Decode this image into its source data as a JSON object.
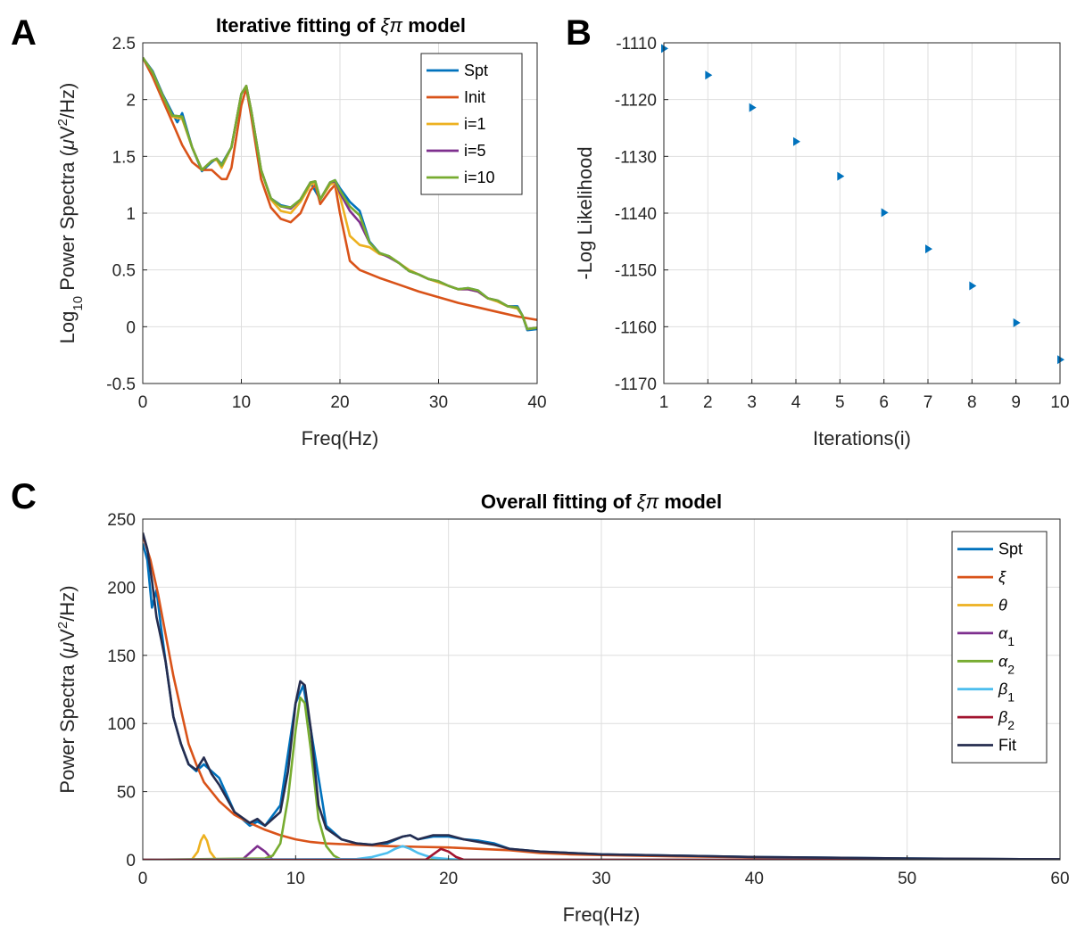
{
  "panels": {
    "A": {
      "letter": "A",
      "title_prefix": "Iterative fitting of",
      "title_symbol": "ξπ",
      "title_suffix": "model"
    },
    "B": {
      "letter": "B"
    },
    "C": {
      "letter": "C",
      "title_prefix": "Overall fitting of",
      "title_symbol": "ξπ",
      "title_suffix": "model"
    }
  },
  "chart_data": [
    {
      "id": "A",
      "type": "line",
      "xlabel": "Freq(Hz)",
      "ylabel": {
        "prefix": "Log",
        "sub": "10",
        "mid": " Power Spectra (",
        "mu": "μ",
        "unit": "V",
        "sup": "2",
        "end": "/Hz)"
      },
      "xlim": [
        0,
        40
      ],
      "ylim": [
        -0.5,
        2.5
      ],
      "xticks": [
        "0",
        "10",
        "20",
        "30",
        "40"
      ],
      "yticks": [
        "-0.5",
        "0",
        "0.5",
        "1",
        "1.5",
        "2",
        "2.5"
      ],
      "grid": true,
      "legend_position": "top-right",
      "series": [
        {
          "name": "Spt",
          "color": "#0072BD",
          "x": [
            0,
            1,
            2,
            3,
            3.5,
            4,
            5,
            6,
            7,
            7.5,
            8,
            9,
            10,
            10.5,
            11,
            12,
            13,
            14,
            15,
            16,
            17,
            18,
            19,
            19.5,
            20,
            21,
            22,
            23,
            24,
            25,
            26,
            27,
            28,
            29,
            30,
            31,
            32,
            33,
            34,
            35,
            36,
            37,
            38,
            38.5,
            39,
            40
          ],
          "y": [
            2.37,
            2.25,
            2.05,
            1.88,
            1.8,
            1.88,
            1.58,
            1.37,
            1.45,
            1.48,
            1.43,
            1.58,
            2.05,
            2.12,
            1.9,
            1.38,
            1.13,
            1.07,
            1.05,
            1.12,
            1.27,
            1.12,
            1.27,
            1.29,
            1.22,
            1.1,
            1.02,
            0.75,
            0.65,
            0.62,
            0.56,
            0.49,
            0.46,
            0.42,
            0.4,
            0.36,
            0.33,
            0.34,
            0.32,
            0.25,
            0.23,
            0.18,
            0.18,
            0.1,
            -0.03,
            -0.02
          ]
        },
        {
          "name": "Init",
          "color": "#D95319",
          "x": [
            0,
            1,
            2,
            3,
            4,
            5,
            6,
            7,
            8,
            8.5,
            9,
            10,
            10.5,
            11,
            12,
            13,
            14,
            15,
            16,
            17,
            17.5,
            18,
            19,
            19.5,
            20,
            21,
            22,
            24,
            26,
            28,
            30,
            32,
            34,
            36,
            38,
            40
          ],
          "y": [
            2.37,
            2.2,
            2.0,
            1.8,
            1.6,
            1.45,
            1.38,
            1.38,
            1.3,
            1.3,
            1.4,
            1.95,
            2.1,
            1.85,
            1.3,
            1.05,
            0.95,
            0.92,
            1.0,
            1.2,
            1.25,
            1.08,
            1.2,
            1.25,
            1.0,
            0.58,
            0.5,
            0.43,
            0.37,
            0.31,
            0.26,
            0.21,
            0.17,
            0.13,
            0.09,
            0.06
          ]
        },
        {
          "name": "i=1",
          "color": "#EDB120",
          "x": [
            0,
            1,
            2,
            3,
            4,
            5,
            6,
            7,
            7.5,
            8,
            9,
            10,
            10.5,
            11,
            12,
            13,
            14,
            15,
            16,
            17,
            17.5,
            18,
            19,
            19.5,
            20,
            21,
            22,
            23,
            24,
            25,
            26,
            27,
            28,
            29,
            30,
            31,
            32,
            33,
            34,
            35,
            36,
            37,
            38,
            38.5,
            39,
            40
          ],
          "y": [
            2.37,
            2.24,
            2.04,
            1.85,
            1.83,
            1.58,
            1.38,
            1.46,
            1.47,
            1.4,
            1.58,
            2.05,
            2.12,
            1.9,
            1.38,
            1.12,
            1.02,
            1.0,
            1.1,
            1.25,
            1.27,
            1.12,
            1.25,
            1.27,
            1.15,
            0.8,
            0.72,
            0.7,
            0.64,
            0.62,
            0.56,
            0.5,
            0.46,
            0.42,
            0.39,
            0.36,
            0.33,
            0.33,
            0.31,
            0.25,
            0.22,
            0.18,
            0.16,
            0.1,
            -0.02,
            -0.01
          ]
        },
        {
          "name": "i=5",
          "color": "#7E2F8E",
          "x": [
            0,
            1,
            2,
            3,
            4,
            5,
            6,
            7,
            7.5,
            8,
            9,
            10,
            10.5,
            11,
            12,
            13,
            14,
            15,
            16,
            17,
            17.5,
            18,
            19,
            19.5,
            20,
            21,
            22,
            23,
            24,
            25,
            26,
            27,
            28,
            29,
            30,
            31,
            32,
            33,
            34,
            35,
            36,
            37,
            38,
            38.5,
            39,
            40
          ],
          "y": [
            2.37,
            2.24,
            2.04,
            1.86,
            1.85,
            1.58,
            1.38,
            1.46,
            1.48,
            1.42,
            1.58,
            2.05,
            2.12,
            1.9,
            1.38,
            1.13,
            1.06,
            1.04,
            1.12,
            1.27,
            1.28,
            1.12,
            1.27,
            1.28,
            1.18,
            1.02,
            0.92,
            0.74,
            0.65,
            0.61,
            0.56,
            0.49,
            0.46,
            0.42,
            0.4,
            0.36,
            0.33,
            0.33,
            0.31,
            0.25,
            0.23,
            0.18,
            0.17,
            0.1,
            -0.02,
            -0.01
          ]
        },
        {
          "name": "i=10",
          "color": "#77AC30",
          "x": [
            0,
            1,
            2,
            3,
            4,
            5,
            6,
            7,
            7.5,
            8,
            9,
            10,
            10.5,
            11,
            12,
            13,
            14,
            15,
            16,
            17,
            17.5,
            18,
            19,
            19.5,
            20,
            21,
            22,
            23,
            24,
            25,
            26,
            27,
            28,
            29,
            30,
            31,
            32,
            33,
            34,
            35,
            36,
            37,
            38,
            38.5,
            39,
            40
          ],
          "y": [
            2.37,
            2.24,
            2.04,
            1.86,
            1.85,
            1.58,
            1.38,
            1.46,
            1.48,
            1.42,
            1.58,
            2.05,
            2.12,
            1.9,
            1.38,
            1.13,
            1.06,
            1.05,
            1.12,
            1.27,
            1.28,
            1.12,
            1.27,
            1.29,
            1.2,
            1.06,
            0.98,
            0.74,
            0.65,
            0.62,
            0.56,
            0.49,
            0.46,
            0.42,
            0.4,
            0.36,
            0.33,
            0.34,
            0.32,
            0.25,
            0.23,
            0.18,
            0.17,
            0.1,
            -0.02,
            -0.01
          ]
        }
      ]
    },
    {
      "id": "B",
      "type": "scatter",
      "xlabel": "Iterations(i)",
      "ylabel": "-Log Likelihood",
      "xlim": [
        1,
        10
      ],
      "ylim": [
        -1170,
        -1110
      ],
      "xticks": [
        "1",
        "2",
        "3",
        "4",
        "5",
        "6",
        "7",
        "8",
        "9",
        "10"
      ],
      "yticks": [
        "-1170",
        "-1160",
        "-1150",
        "-1140",
        "-1130",
        "-1120",
        "-1110"
      ],
      "grid": true,
      "marker": "right-triangle",
      "series": [
        {
          "color": "#0072BD",
          "x": [
            1,
            2,
            3,
            4,
            5,
            6,
            7,
            8,
            9,
            10
          ],
          "y": [
            -1111.0,
            -1115.7,
            -1121.4,
            -1127.4,
            -1133.5,
            -1139.9,
            -1146.3,
            -1152.8,
            -1159.3,
            -1165.8
          ]
        }
      ]
    },
    {
      "id": "C",
      "type": "line",
      "xlabel": "Freq(Hz)",
      "ylabel": {
        "prefix": "Power Spectra (",
        "mu": "μ",
        "unit": "V",
        "sup": "2",
        "end": "/Hz)"
      },
      "xlim": [
        0,
        60
      ],
      "ylim": [
        0,
        250
      ],
      "xticks": [
        "0",
        "10",
        "20",
        "30",
        "40",
        "50",
        "60"
      ],
      "yticks": [
        "0",
        "50",
        "100",
        "150",
        "200",
        "250"
      ],
      "grid": true,
      "legend_position": "top-right",
      "series": [
        {
          "name": "Spt",
          "label": "Spt",
          "color": "#0072BD",
          "x": [
            0,
            0.3,
            0.6,
            0.9,
            1.2,
            1.5,
            2,
            2.5,
            3,
            3.5,
            4,
            4.5,
            5,
            6,
            7,
            7.5,
            8,
            9,
            10,
            10.5,
            11,
            12,
            13,
            14,
            15,
            16,
            17,
            17.5,
            18,
            19,
            20,
            21,
            22,
            23,
            24,
            26,
            28,
            30,
            35,
            40,
            45,
            50,
            55,
            60
          ],
          "y": [
            232,
            220,
            185,
            198,
            170,
            145,
            105,
            85,
            70,
            65,
            70,
            65,
            60,
            35,
            25,
            28,
            25,
            40,
            115,
            128,
            95,
            25,
            15,
            12,
            11,
            12,
            17,
            18,
            15,
            17,
            17,
            15,
            14,
            12,
            8,
            6,
            5,
            4,
            3,
            2,
            1.5,
            1,
            0.6,
            0.4
          ]
        },
        {
          "name": "ξ",
          "label": "ξ",
          "italic": true,
          "color": "#D95319",
          "x": [
            0,
            0.5,
            1,
            1.5,
            2,
            2.5,
            3,
            3.5,
            4,
            5,
            6,
            7,
            8,
            9,
            10,
            11,
            12,
            14,
            16,
            18,
            20,
            22,
            24,
            26,
            28,
            30,
            35,
            40,
            45,
            50,
            55,
            60
          ],
          "y": [
            238,
            220,
            195,
            165,
            135,
            110,
            85,
            70,
            57,
            43,
            33,
            27,
            22,
            18,
            15,
            13,
            12,
            11,
            10,
            9.5,
            9,
            8,
            7,
            5,
            4,
            3.5,
            2.5,
            1.8,
            1.2,
            0.8,
            0.5,
            0.3
          ]
        },
        {
          "name": "θ",
          "label": "θ",
          "italic": true,
          "color": "#EDB120",
          "x": [
            0,
            3.2,
            3.6,
            3.8,
            4,
            4.2,
            4.4,
            4.8,
            60
          ],
          "y": [
            0,
            0,
            6,
            14,
            18,
            14,
            6,
            0,
            0
          ]
        },
        {
          "name": "α1",
          "label": "α",
          "sub": "1",
          "italic": true,
          "color": "#7E2F8E",
          "x": [
            0,
            6.5,
            7,
            7.5,
            8,
            8.5,
            60
          ],
          "y": [
            0,
            0,
            5,
            10,
            6,
            0,
            0
          ]
        },
        {
          "name": "α2",
          "label": "α",
          "sub": "2",
          "italic": true,
          "color": "#77AC30",
          "x": [
            0,
            8,
            8.5,
            9,
            9.5,
            10,
            10.3,
            10.6,
            11,
            11.5,
            12,
            12.5,
            13,
            60
          ],
          "y": [
            0,
            1,
            3,
            12,
            45,
            95,
            119,
            115,
            80,
            30,
            10,
            3,
            0,
            0
          ]
        },
        {
          "name": "β1",
          "label": "β",
          "sub": "1",
          "italic": true,
          "color": "#4DBEEE",
          "x": [
            0,
            14,
            15,
            16,
            16.5,
            17,
            17.5,
            18,
            18.5,
            19,
            20,
            21,
            60
          ],
          "y": [
            0,
            0.5,
            2,
            5,
            8,
            10,
            8,
            5,
            3,
            1.5,
            0.5,
            0,
            0
          ]
        },
        {
          "name": "β2",
          "label": "β",
          "sub": "2",
          "italic": true,
          "color": "#A2142F",
          "x": [
            0,
            18.5,
            19,
            19.5,
            20,
            20.5,
            21,
            60
          ],
          "y": [
            0,
            0,
            4,
            8,
            6,
            2,
            0,
            0
          ]
        },
        {
          "name": "Fit",
          "label": "Fit",
          "color": "#262D4F",
          "x": [
            0,
            0.3,
            0.6,
            0.9,
            1.2,
            1.5,
            2,
            2.5,
            3,
            3.5,
            4,
            4.5,
            5,
            6,
            7,
            7.5,
            8,
            9,
            9.5,
            10,
            10.3,
            10.6,
            11,
            11.5,
            12,
            13,
            14,
            15,
            16,
            17,
            17.5,
            18,
            19,
            20,
            21,
            22,
            23,
            24,
            26,
            28,
            30,
            35,
            40,
            45,
            50,
            55,
            60
          ],
          "y": [
            240,
            228,
            205,
            178,
            162,
            145,
            105,
            85,
            70,
            66,
            75,
            63,
            55,
            35,
            27,
            30,
            25,
            35,
            65,
            115,
            131,
            128,
            95,
            40,
            23,
            15,
            12,
            11,
            13,
            17,
            18,
            15,
            18,
            18,
            15,
            13,
            11,
            8,
            6,
            5,
            4,
            3,
            2,
            1.5,
            1,
            0.6,
            0.4
          ]
        }
      ]
    }
  ]
}
